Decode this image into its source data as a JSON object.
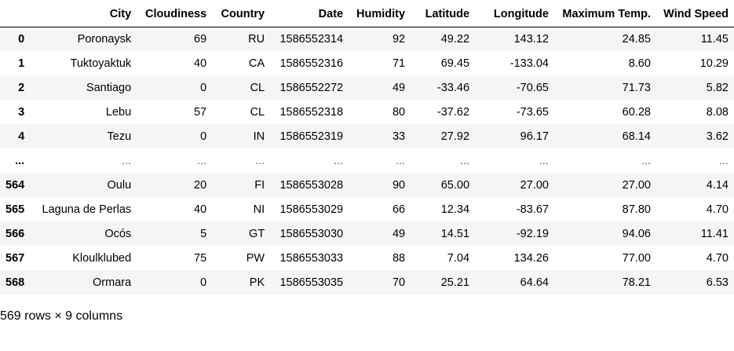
{
  "table": {
    "columns": [
      "",
      "City",
      "Cloudiness",
      "Country",
      "Date",
      "Humidity",
      "Latitude",
      "Longitude",
      "Maximum Temp.",
      "Wind Speed"
    ],
    "rows": [
      [
        "0",
        "Poronaysk",
        "69",
        "RU",
        "1586552314",
        "92",
        "49.22",
        "143.12",
        "24.85",
        "11.45"
      ],
      [
        "1",
        "Tuktoyaktuk",
        "40",
        "CA",
        "1586552316",
        "71",
        "69.45",
        "-133.04",
        "8.60",
        "10.29"
      ],
      [
        "2",
        "Santiago",
        "0",
        "CL",
        "1586552272",
        "49",
        "-33.46",
        "-70.65",
        "71.73",
        "5.82"
      ],
      [
        "3",
        "Lebu",
        "57",
        "CL",
        "1586552318",
        "80",
        "-37.62",
        "-73.65",
        "60.28",
        "8.08"
      ],
      [
        "4",
        "Tezu",
        "0",
        "IN",
        "1586552319",
        "33",
        "27.92",
        "96.17",
        "68.14",
        "3.62"
      ],
      [
        "...",
        "...",
        "...",
        "...",
        "...",
        "...",
        "...",
        "...",
        "...",
        "..."
      ],
      [
        "564",
        "Oulu",
        "20",
        "FI",
        "1586553028",
        "90",
        "65.00",
        "27.00",
        "27.00",
        "4.14"
      ],
      [
        "565",
        "Laguna de Perlas",
        "40",
        "NI",
        "1586553029",
        "66",
        "12.34",
        "-83.67",
        "87.80",
        "4.70"
      ],
      [
        "566",
        "Ocós",
        "5",
        "GT",
        "1586553030",
        "49",
        "14.51",
        "-92.19",
        "94.06",
        "11.41"
      ],
      [
        "567",
        "Kloulklubed",
        "75",
        "PW",
        "1586553033",
        "88",
        "7.04",
        "134.26",
        "77.00",
        "4.70"
      ],
      [
        "568",
        "Ormara",
        "0",
        "PK",
        "1586553035",
        "70",
        "25.21",
        "64.64",
        "78.21",
        "6.53"
      ]
    ]
  },
  "shape_note": "569 rows × 9 columns"
}
